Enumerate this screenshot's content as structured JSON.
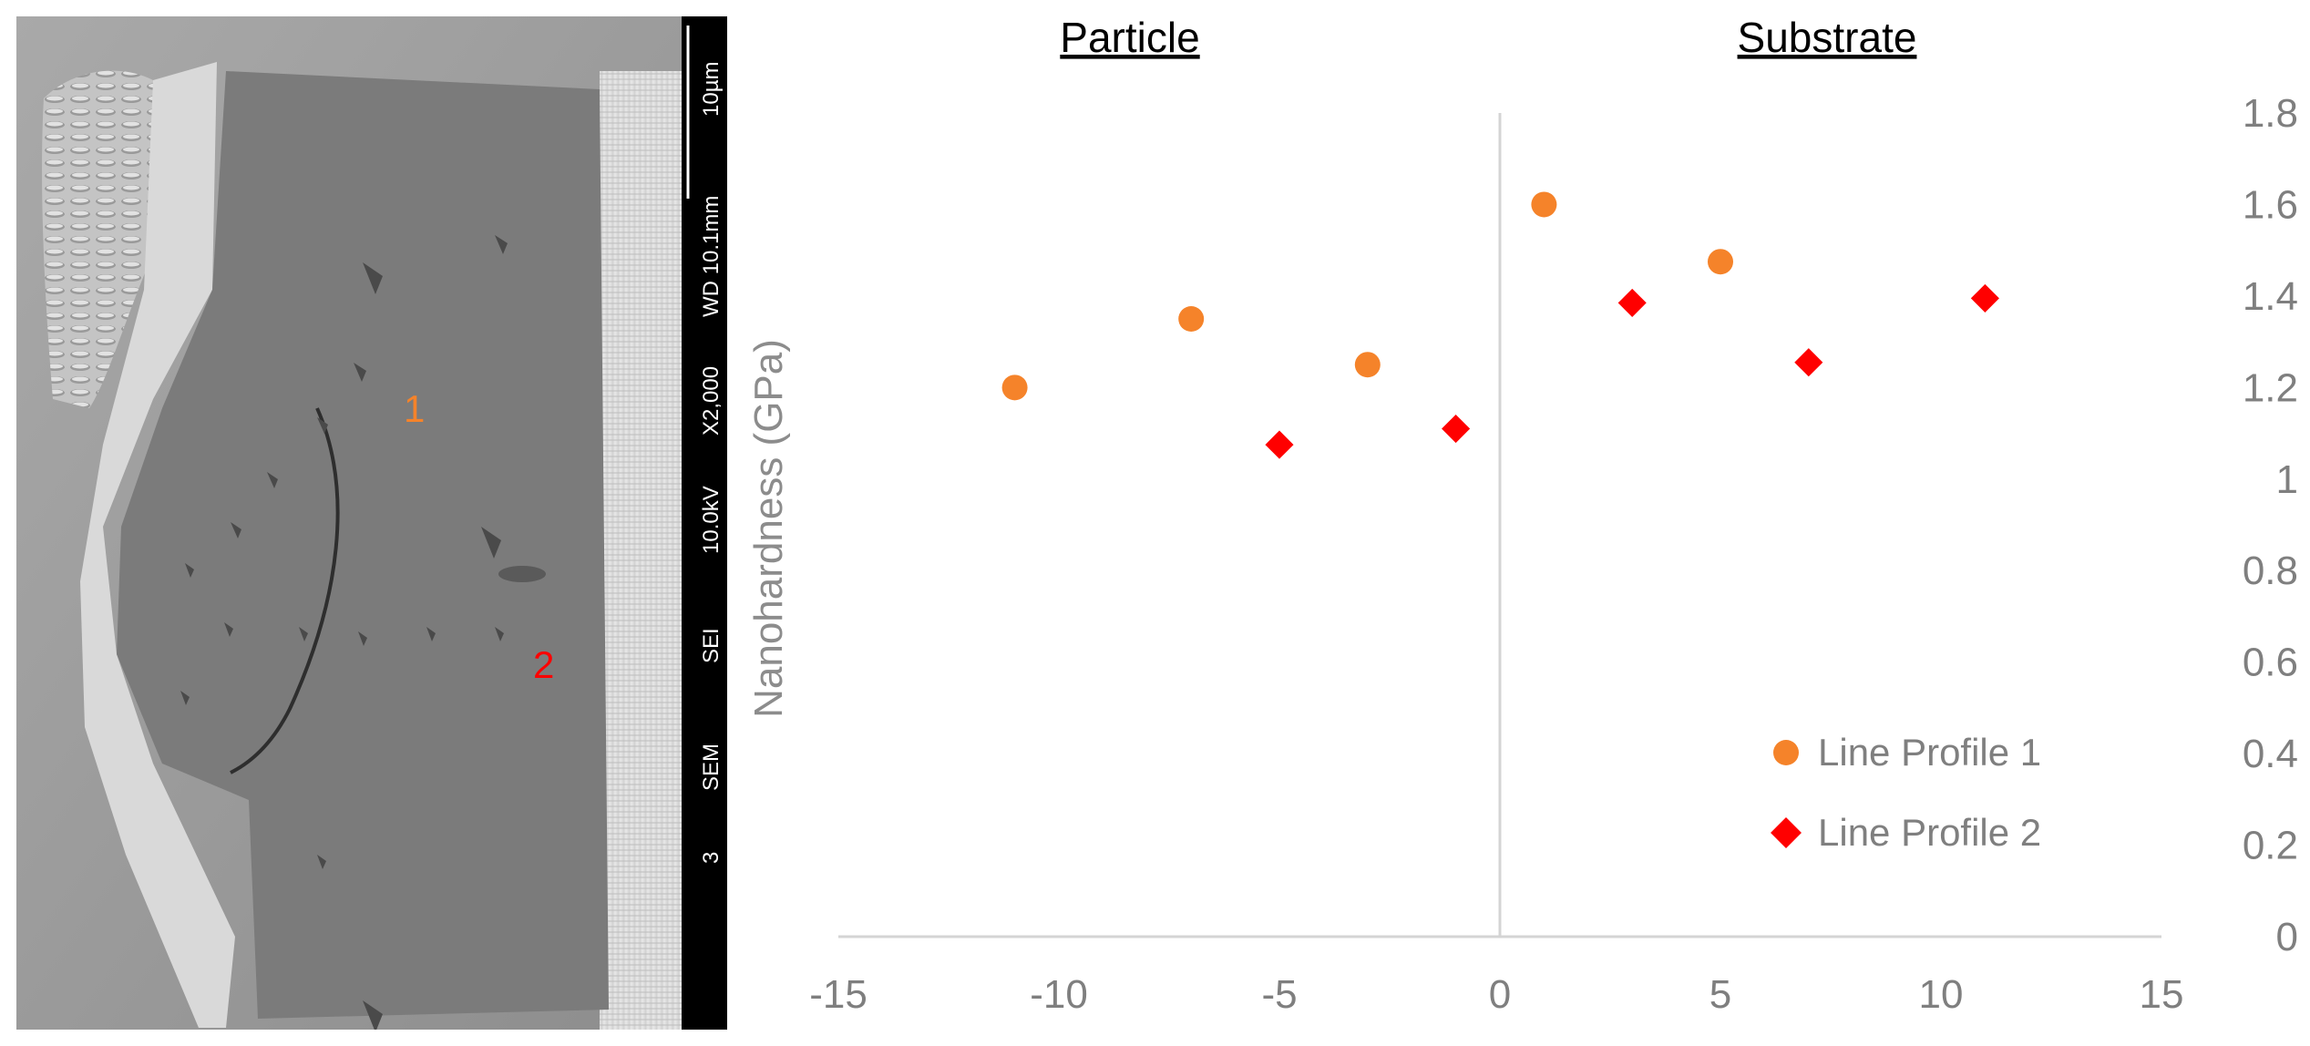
{
  "sem_image": {
    "scale_bar_text": "10µm",
    "info_strip": [
      "WD 10.1mm",
      "X2,000",
      "10.0kV",
      "SEI",
      "SEM",
      "3"
    ],
    "markers": [
      {
        "label": "1",
        "color": "#f5832a"
      },
      {
        "label": "2",
        "color": "#ff0000"
      }
    ]
  },
  "chart_data": {
    "type": "scatter",
    "region_labels": [
      "Particle",
      "Substrate"
    ],
    "xlabel": "",
    "ylabel": "Nanohardness (GPa)",
    "xlim": [
      -15,
      15
    ],
    "ylim": [
      0,
      1.8
    ],
    "x_ticks": [
      -15,
      -10,
      -5,
      0,
      5,
      10,
      15
    ],
    "y_ticks": [
      0,
      0.2,
      0.4,
      0.6,
      0.8,
      1,
      1.2,
      1.4,
      1.6,
      1.8
    ],
    "y_tick_labels": [
      "0",
      "0.2",
      "0.4",
      "0.6",
      "0.8",
      "1",
      "1.2",
      "1.4",
      "1.6",
      "1.8"
    ],
    "y_axis_position": "right",
    "grid": false,
    "legend_position": "bottom-right",
    "series": [
      {
        "name": "Line Profile 1",
        "marker": "circle",
        "color": "#f5832a",
        "points": [
          [
            -11,
            1.2
          ],
          [
            -7,
            1.35
          ],
          [
            -3,
            1.25
          ],
          [
            1,
            1.6
          ],
          [
            5,
            1.475
          ]
        ]
      },
      {
        "name": "Line Profile 2",
        "marker": "diamond",
        "color": "#ff0000",
        "points": [
          [
            -5,
            1.075
          ],
          [
            -1,
            1.11
          ],
          [
            3,
            1.385
          ],
          [
            7,
            1.255
          ],
          [
            11,
            1.395
          ]
        ]
      }
    ]
  }
}
